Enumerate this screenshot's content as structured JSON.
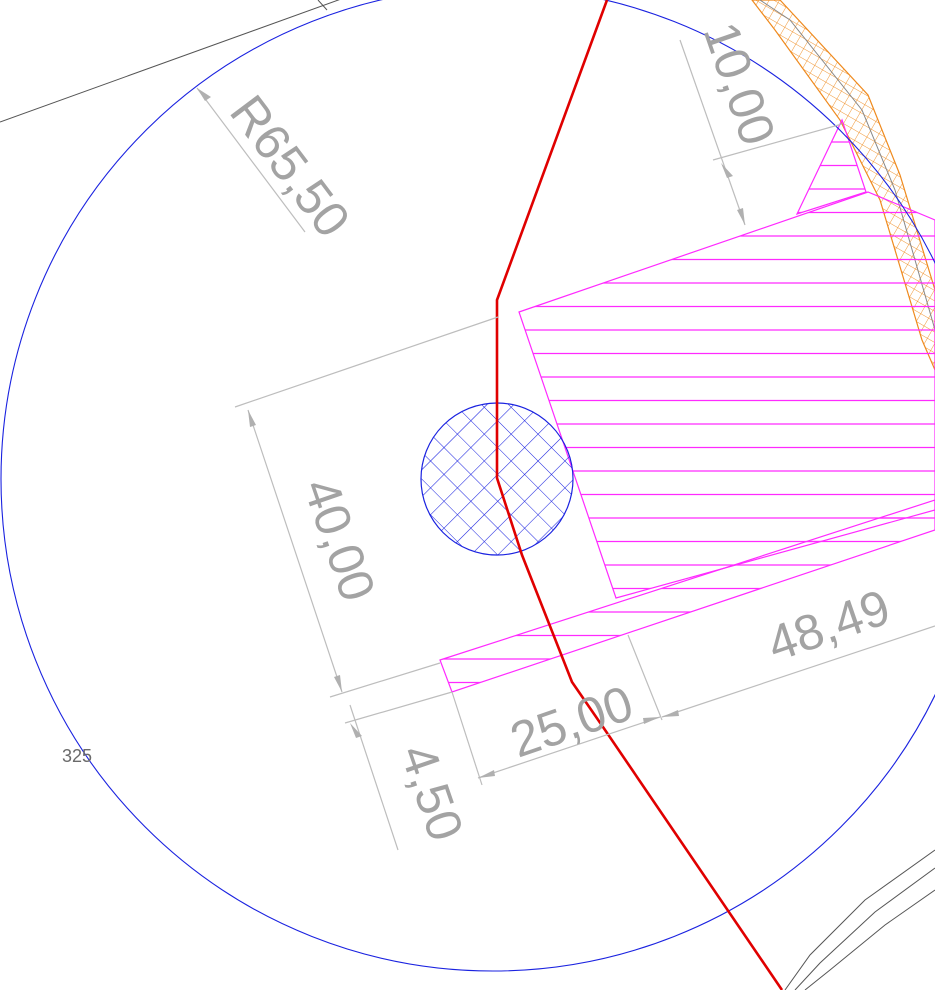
{
  "drawing": {
    "radius_label": "R65,50",
    "top_dim_label": "10,00",
    "left_dim_label": "40,00",
    "small_dim_label": "4,50",
    "bottom_dim_label": "25,00",
    "right_dim_label": "48,49",
    "point_label": "325",
    "colors": {
      "circle": "#1a22e0",
      "cross_hatch": "#1a22e0",
      "route": "#e00000",
      "zone": "#ff2aff",
      "strip": "#ef8a1e",
      "dimension": "#a3a3a3",
      "background_lines": "#555555"
    }
  }
}
